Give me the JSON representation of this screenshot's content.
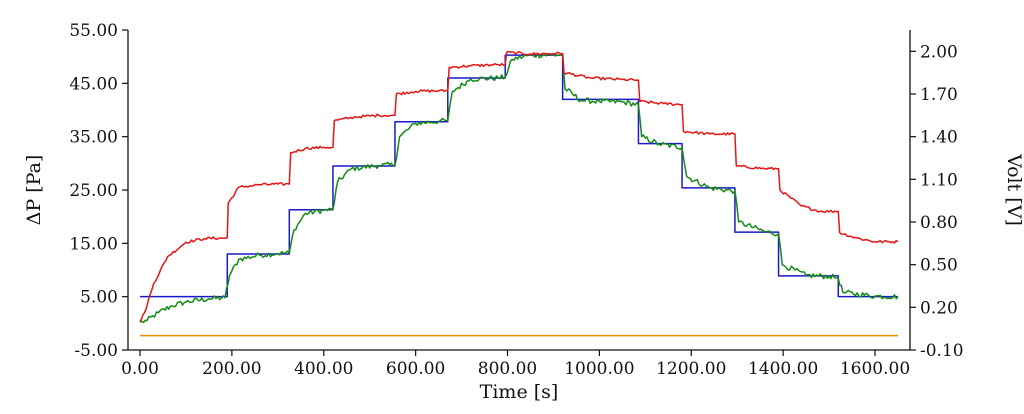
{
  "chart_data": {
    "type": "line",
    "xlabel": "Time [s]",
    "ylabel_left": "ΔP [Pa]",
    "ylabel_right": "Volt [V]",
    "xlim": [
      -30,
      1660
    ],
    "ylim_left": [
      -5,
      55
    ],
    "ylim_right": [
      -0.1,
      2.15
    ],
    "grid": false,
    "legend": "none",
    "x_ticks": [
      {
        "v": 0,
        "label": "0.00"
      },
      {
        "v": 200,
        "label": "200.00"
      },
      {
        "v": 400,
        "label": "400.00"
      },
      {
        "v": 600,
        "label": "600.00"
      },
      {
        "v": 800,
        "label": "800.00"
      },
      {
        "v": 1000,
        "label": "1000.00"
      },
      {
        "v": 1200,
        "label": "1200.00"
      },
      {
        "v": 1400,
        "label": "1400.00"
      },
      {
        "v": 1600,
        "label": "1600.00"
      }
    ],
    "y_left_ticks": [
      {
        "v": 55,
        "label": "55.00"
      },
      {
        "v": 45,
        "label": "45.00"
      },
      {
        "v": 35,
        "label": "35.00"
      },
      {
        "v": 25,
        "label": "25.00"
      },
      {
        "v": 15,
        "label": "15.00"
      },
      {
        "v": 5,
        "label": "5.00"
      },
      {
        "v": -5,
        "label": "-5.00"
      }
    ],
    "y_right_ticks": [
      {
        "v": 2.0,
        "label": "2.00"
      },
      {
        "v": 1.7,
        "label": "1.70"
      },
      {
        "v": 1.4,
        "label": "1.40"
      },
      {
        "v": 1.1,
        "label": "1.10"
      },
      {
        "v": 0.8,
        "label": "0.80"
      },
      {
        "v": 0.5,
        "label": "0.50"
      },
      {
        "v": 0.2,
        "label": "0.20"
      },
      {
        "v": -0.1,
        "label": "-0.10"
      }
    ],
    "series": [
      {
        "axis": "left",
        "color": "#1a1acc",
        "shape": "step",
        "x": [
          0,
          190,
          325,
          420,
          555,
          670,
          795,
          920,
          1085,
          1180,
          1295,
          1390,
          1520,
          1650
        ],
        "y": [
          5.0,
          13.0,
          21.3,
          29.5,
          37.8,
          46.0,
          50.3,
          42.0,
          33.7,
          25.4,
          17.1,
          8.9,
          5.0,
          5.0
        ]
      },
      {
        "axis": "left",
        "color": "#158a15",
        "shape": "line",
        "x": [
          0,
          15,
          40,
          70,
          100,
          150,
          185,
          195,
          215,
          260,
          300,
          325,
          335,
          360,
          400,
          420,
          430,
          460,
          520,
          555,
          565,
          600,
          650,
          670,
          680,
          720,
          780,
          795,
          810,
          850,
          900,
          920,
          925,
          960,
          1000,
          1050,
          1085,
          1092,
          1130,
          1180,
          1190,
          1240,
          1295,
          1303,
          1360,
          1390,
          1398,
          1450,
          1500,
          1520,
          1530,
          1600,
          1650
        ],
        "y": [
          0.2,
          0.5,
          2.0,
          3.3,
          4.0,
          4.6,
          4.8,
          9.0,
          12.0,
          12.8,
          13.1,
          13.2,
          17.5,
          20.6,
          21.2,
          21.3,
          26.5,
          29.0,
          29.6,
          29.7,
          35.0,
          37.5,
          37.9,
          38.0,
          43.5,
          45.8,
          46.0,
          46.2,
          49.5,
          50.3,
          50.3,
          50.3,
          44.0,
          41.8,
          41.6,
          41.5,
          41.0,
          35.0,
          33.6,
          33.0,
          27.5,
          25.4,
          24.8,
          19.0,
          17.2,
          16.8,
          11.0,
          9.0,
          8.8,
          8.5,
          5.8,
          5.1,
          5.0
        ]
      },
      {
        "axis": "left",
        "color": "#e61515",
        "shape": "line",
        "x": [
          0,
          10,
          30,
          60,
          100,
          140,
          190,
          192,
          215,
          260,
          300,
          325,
          328,
          360,
          400,
          420,
          423,
          470,
          520,
          555,
          558,
          600,
          650,
          670,
          673,
          720,
          780,
          795,
          798,
          850,
          900,
          920,
          923,
          980,
          1050,
          1085,
          1088,
          1140,
          1180,
          1183,
          1240,
          1295,
          1298,
          1360,
          1390,
          1393,
          1440,
          1480,
          1520,
          1523,
          1560,
          1600,
          1650
        ],
        "y": [
          0.3,
          2.0,
          7.5,
          12.5,
          15.2,
          15.9,
          16.0,
          22.5,
          25.5,
          26.0,
          26.1,
          26.1,
          32.0,
          32.8,
          33.0,
          33.0,
          38.0,
          38.7,
          39.0,
          39.0,
          43.0,
          43.5,
          43.6,
          43.6,
          48.0,
          48.3,
          48.5,
          48.5,
          50.8,
          50.5,
          50.6,
          50.6,
          47.0,
          46.0,
          45.7,
          45.6,
          41.6,
          41.2,
          41.0,
          36.0,
          35.5,
          35.5,
          29.5,
          29.0,
          29.0,
          25.0,
          22.0,
          21.0,
          21.0,
          17.0,
          16.0,
          15.3,
          15.3
        ]
      },
      {
        "axis": "left",
        "color": "#f08c00",
        "shape": "line",
        "x": [
          0,
          1650
        ],
        "y": [
          -2.3,
          -2.3
        ]
      }
    ]
  }
}
